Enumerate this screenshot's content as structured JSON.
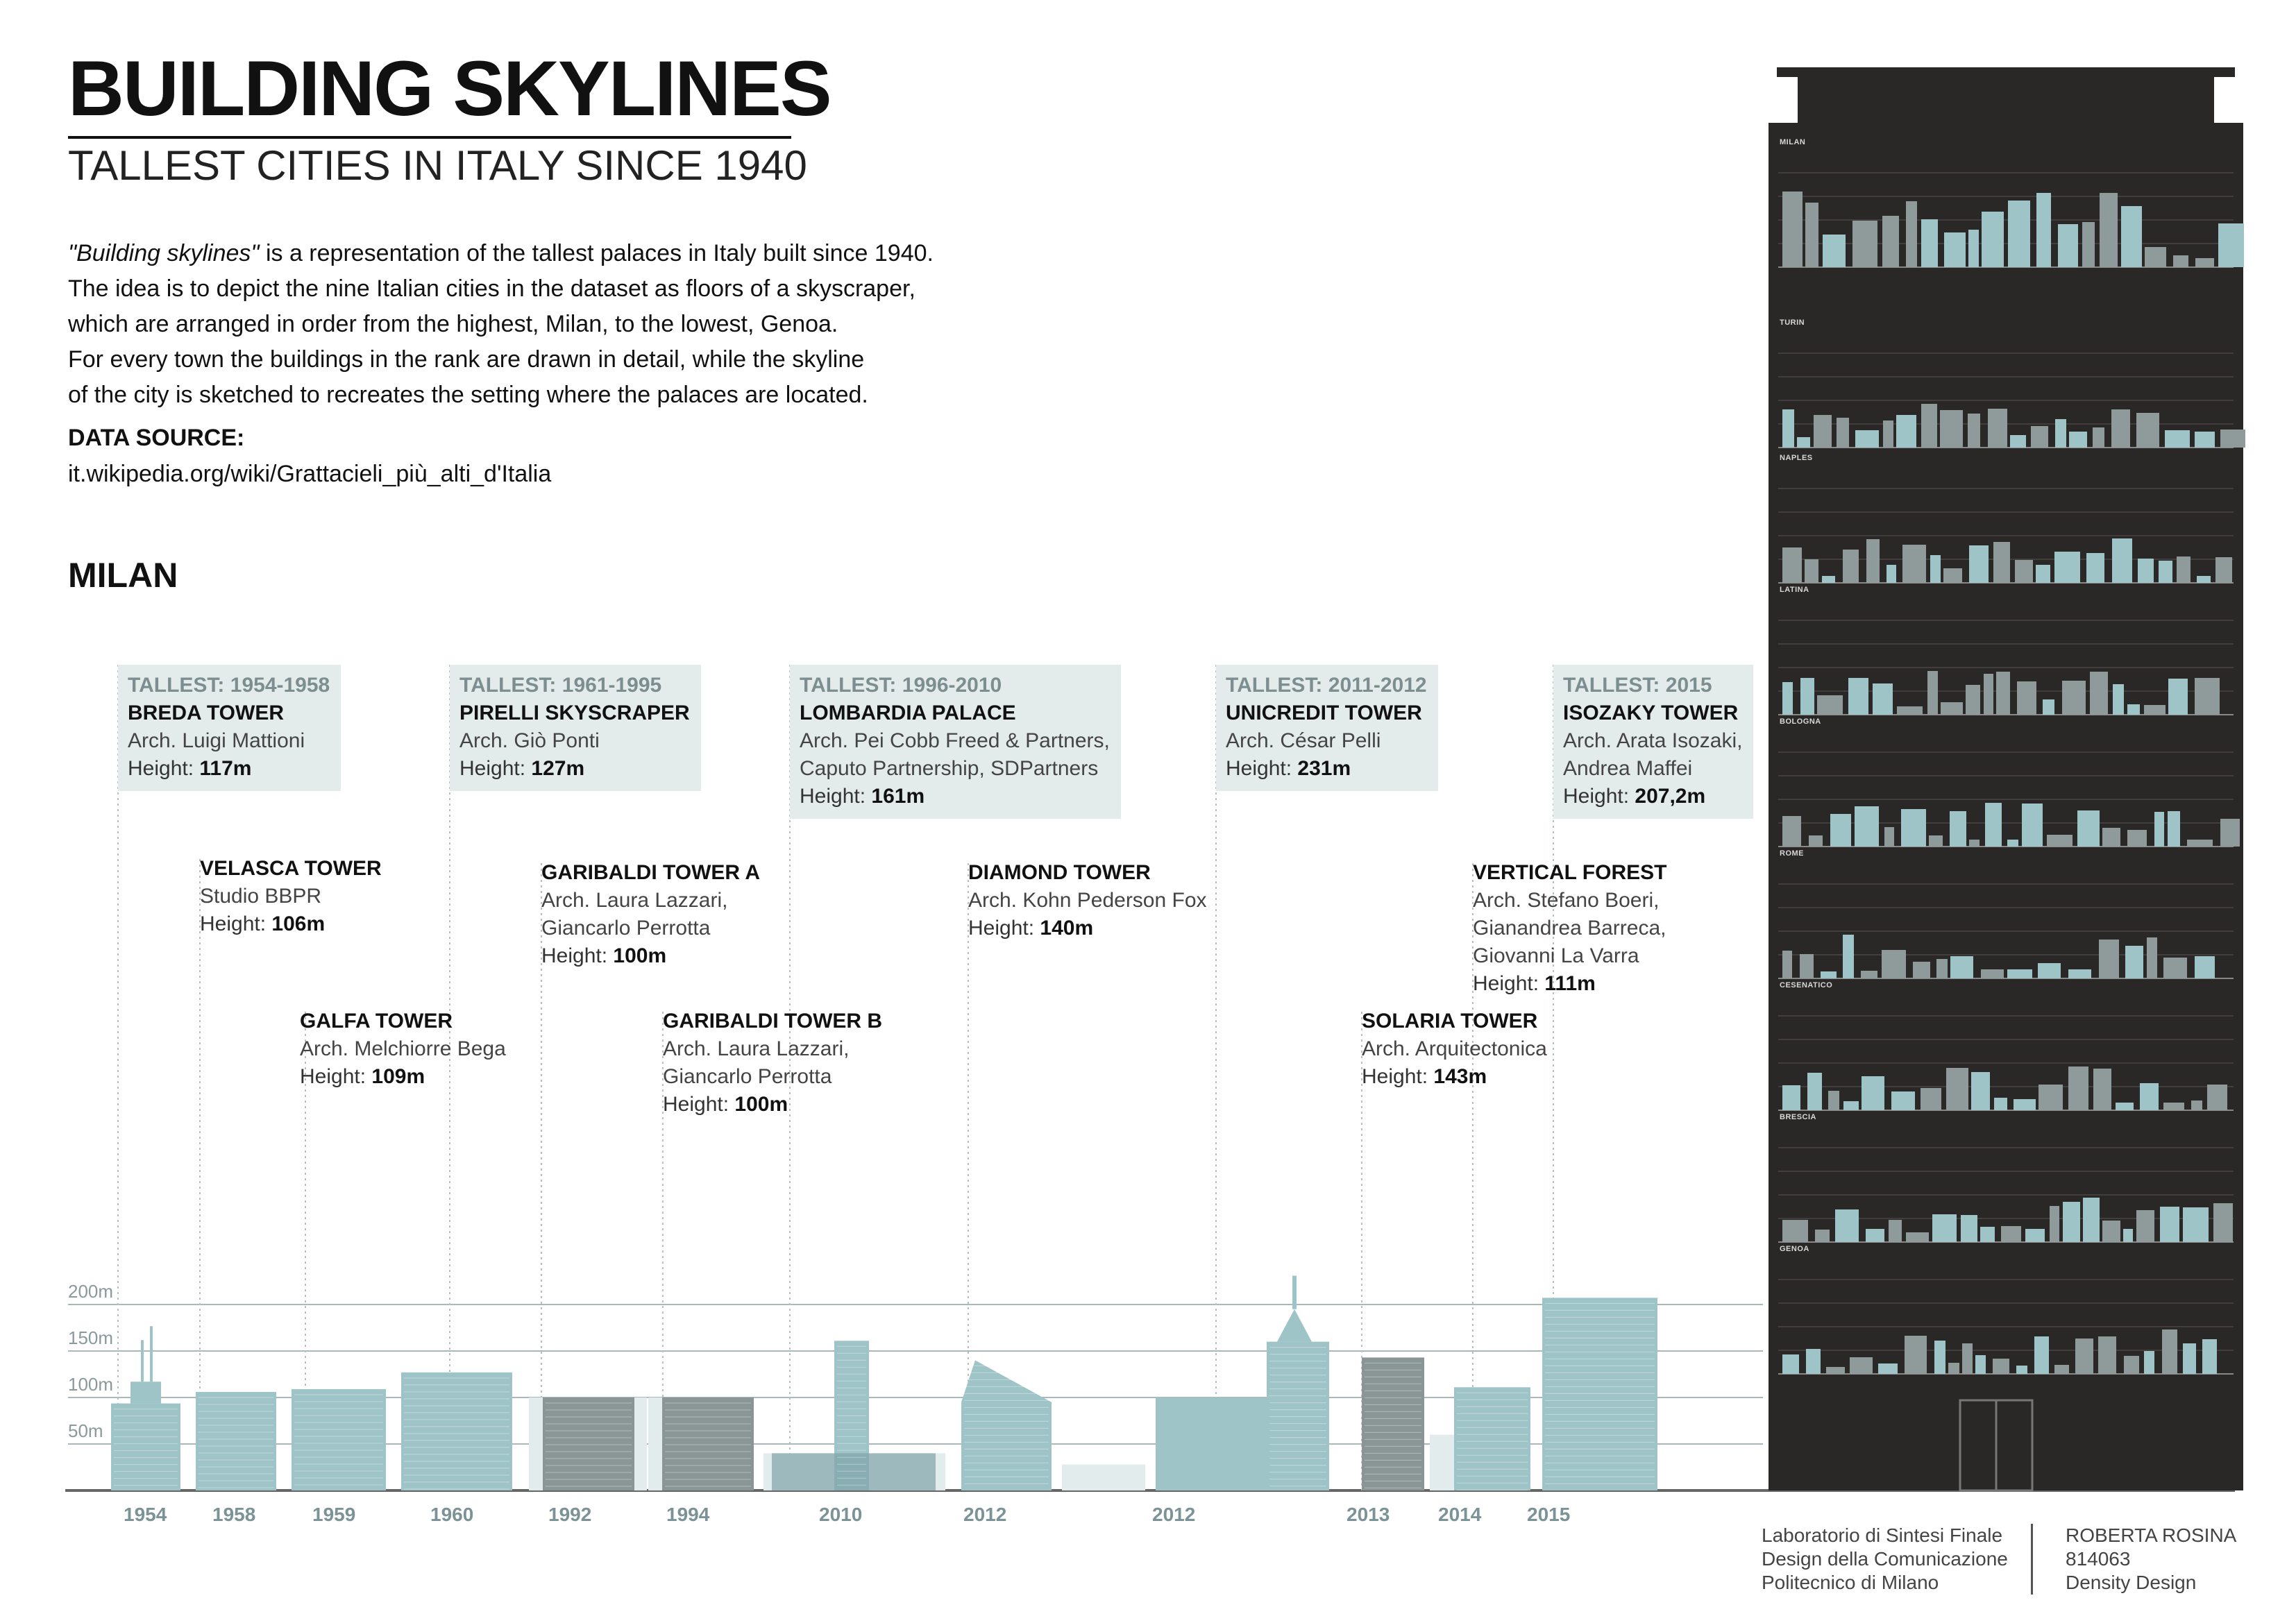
{
  "header": {
    "title": "BUILDING SKYLINES",
    "subtitle": "TALLEST CITIES IN ITALY SINCE 1940"
  },
  "description": {
    "line1_em": "\"Building skylines\"",
    "line1_rest": " is a representation of the tallest palaces in Italy built since 1940.",
    "line2": "The idea is to depict the nine Italian cities in the dataset as floors of a skyscraper,",
    "line3": "which are arranged in order from the highest, Milan, to the lowest, Genoa.",
    "line4": "For every town the buildings in the rank are drawn in detail, while the skyline",
    "line5": "of the city is sketched to recreates the setting where the palaces are located."
  },
  "source": {
    "title": "DATA SOURCE:",
    "url": "it.wikipedia.org/wiki/Grattacieli_più_alti_d'Italia"
  },
  "section_title": "MILAN",
  "buildings": [
    {
      "tag": "TALLEST: 1954-1958",
      "name": "BREDA TOWER",
      "arch": [
        "Arch. Luigi Mattioni"
      ],
      "height_label": "Height: ",
      "height_value": "117m"
    },
    {
      "tag": "",
      "name": "VELASCA TOWER",
      "arch": [
        "Studio BBPR"
      ],
      "height_label": "Height: ",
      "height_value": "106m"
    },
    {
      "tag": "",
      "name": "GALFA TOWER",
      "arch": [
        "Arch. Melchiorre Bega"
      ],
      "height_label": "Height: ",
      "height_value": "109m"
    },
    {
      "tag": "TALLEST: 1961-1995",
      "name": "PIRELLI SKYSCRAPER",
      "arch": [
        "Arch. Giò Ponti"
      ],
      "height_label": "Height: ",
      "height_value": "127m"
    },
    {
      "tag": "",
      "name": "GARIBALDI TOWER A",
      "arch": [
        "Arch. Laura Lazzari,",
        "Giancarlo Perrotta"
      ],
      "height_label": "Height: ",
      "height_value": "100m"
    },
    {
      "tag": "",
      "name": "GARIBALDI TOWER B",
      "arch": [
        "Arch. Laura Lazzari,",
        "Giancarlo Perrotta"
      ],
      "height_label": "Height: ",
      "height_value": "100m"
    },
    {
      "tag": "TALLEST: 1996-2010",
      "name": "LOMBARDIA PALACE",
      "arch": [
        "Arch. Pei Cobb Freed & Partners,",
        "Caputo Partnership, SDPartners"
      ],
      "height_label": "Height: ",
      "height_value": "161m"
    },
    {
      "tag": "",
      "name": "DIAMOND TOWER",
      "arch": [
        "Arch. Kohn Pederson Fox"
      ],
      "height_label": "Height: ",
      "height_value": "140m"
    },
    {
      "tag": "TALLEST: 2011-2012",
      "name": "UNICREDIT TOWER",
      "arch": [
        "Arch. César Pelli"
      ],
      "height_label": "Height: ",
      "height_value": "231m"
    },
    {
      "tag": "",
      "name": "SOLARIA TOWER",
      "arch": [
        "Arch. Arquitectonica"
      ],
      "height_label": "Height: ",
      "height_value": "143m"
    },
    {
      "tag": "",
      "name": "VERTICAL FOREST",
      "arch": [
        "Arch. Stefano Boeri,",
        "Gianandrea Barreca,",
        "Giovanni La Varra"
      ],
      "height_label": "Height: ",
      "height_value": "111m"
    },
    {
      "tag": "TALLEST: 2015",
      "name": "ISOZAKY TOWER",
      "arch": [
        "Arch. Arata Isozaki,",
        "Andrea Maffei"
      ],
      "height_label": "Height:  ",
      "height_value": "207,2m"
    }
  ],
  "chart_data": {
    "type": "bar",
    "ylim": [
      0,
      250
    ],
    "y_ticks": [
      "50m",
      "100m",
      "150m",
      "200m"
    ],
    "y_tick_values": [
      50,
      100,
      150,
      200
    ],
    "grid": true,
    "x_labels": [
      "1954",
      "1958",
      "1959",
      "1960",
      "1992",
      "1994",
      "2010",
      "2012",
      "2012",
      "2013",
      "2014",
      "2015"
    ],
    "categories": [
      "BREDA TOWER",
      "VELASCA TOWER",
      "GALFA TOWER",
      "PIRELLI SKYSCRAPER",
      "GARIBALDI TOWER A",
      "GARIBALDI TOWER B",
      "LOMBARDIA PALACE",
      "DIAMOND TOWER",
      "UNICREDIT TOWER",
      "SOLARIA TOWER",
      "VERTICAL FOREST",
      "ISOZAKY TOWER"
    ],
    "values": [
      117,
      106,
      109,
      127,
      100,
      100,
      161,
      140,
      231,
      143,
      111,
      207.2
    ],
    "colors": {
      "building": "#9fc4c8",
      "building_dark": "#7fa4a8",
      "building_grey": "#8a9596",
      "context": "#e3eced"
    }
  },
  "side_panel": {
    "cities": [
      "MILAN",
      "TURIN",
      "NAPLES",
      "LATINA",
      "BOLOGNA",
      "ROME",
      "CESENATICO",
      "BRESCIA",
      "GENOA"
    ],
    "background": "#2a2727"
  },
  "footer": {
    "course": [
      "Laboratorio di Sintesi Finale",
      "Design della Comunicazione",
      "Politecnico di Milano"
    ],
    "author": [
      "ROBERTA ROSINA",
      "814063",
      "Density Design"
    ]
  }
}
